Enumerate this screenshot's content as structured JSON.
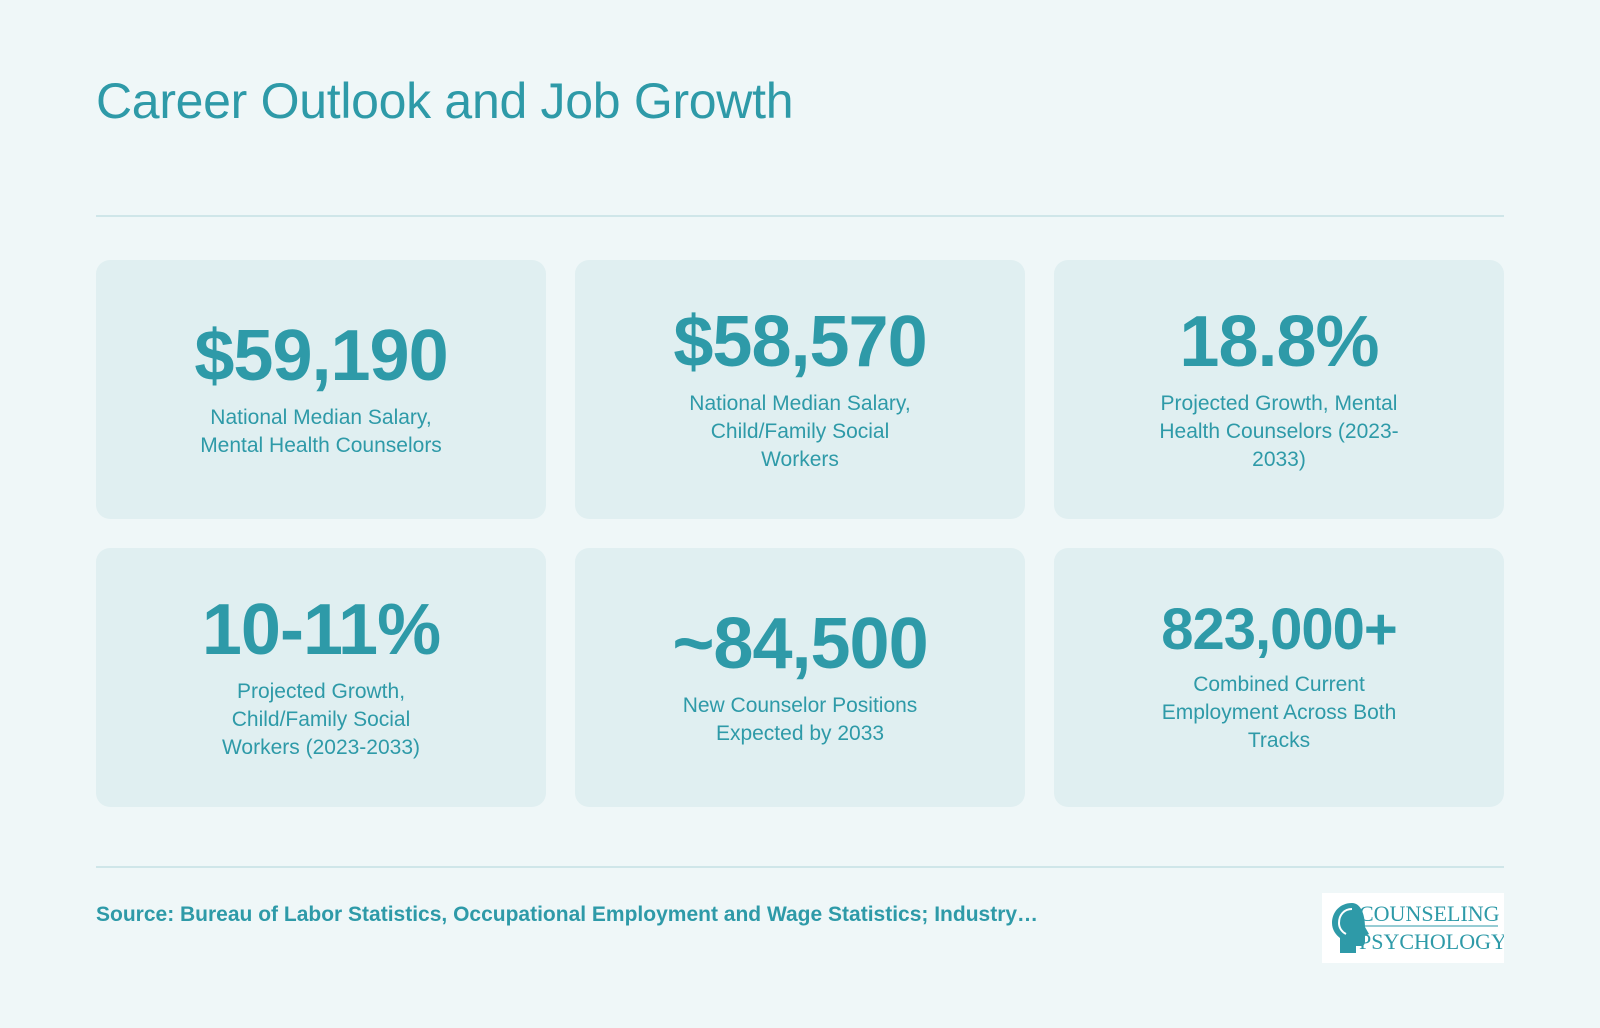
{
  "title": "Career Outlook and Job Growth",
  "stats": [
    {
      "value": "$59,190",
      "label": "National Median Salary, Mental Health Counselors"
    },
    {
      "value": "$58,570",
      "label": "National Median Salary, Child/Family Social Workers"
    },
    {
      "value": "18.8%",
      "label": "Projected Growth, Mental Health Counselors (2023-2033)"
    },
    {
      "value": "10-11%",
      "label": "Projected Growth, Child/Family Social Workers (2023-2033)"
    },
    {
      "value": "~84,500",
      "label": "New Counselor Positions Expected by 2033"
    },
    {
      "value": "823,000+",
      "label": "Combined Current Employment Across Both Tracks"
    }
  ],
  "source": "Source: Bureau of Labor Statistics, Occupational Employment and Wage Statistics; Industry…",
  "logo": {
    "line1": "COUNSELING",
    "line2": "PSYCHOLOGY"
  },
  "colors": {
    "accent": "#2e9aa8",
    "background": "#eff7f8",
    "card": "#e0eff1"
  }
}
